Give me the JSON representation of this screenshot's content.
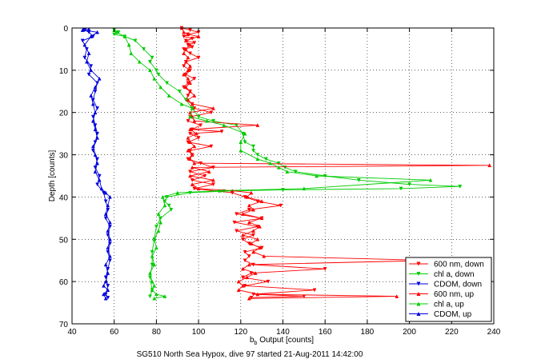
{
  "chart_data": {
    "type": "line",
    "title": "",
    "xlabel_main": "b",
    "xlabel_sub": "b",
    "xlabel_rest": " Output [counts]",
    "ylabel": "Depth [counts]",
    "caption": "SG510 North Sea Hypox, dive 97 started 21-Aug-2011 14:42:00",
    "xlim": [
      40,
      240
    ],
    "ylim": [
      0,
      70
    ],
    "y_reversed": true,
    "xticks": [
      40,
      60,
      80,
      100,
      120,
      140,
      160,
      180,
      200,
      220,
      240
    ],
    "yticks": [
      0,
      10,
      20,
      30,
      40,
      50,
      60,
      70
    ],
    "grid": "dotted",
    "legend_position": "bottom-right",
    "series": [
      {
        "name": "600 nm, down",
        "color": "#ff0000",
        "marker": "triangle-down",
        "points": [
          [
            92,
            0
          ],
          [
            96,
            0.5
          ],
          [
            100,
            1
          ],
          [
            95,
            1.5
          ],
          [
            93,
            2
          ],
          [
            97,
            2.5
          ],
          [
            94,
            3
          ],
          [
            98,
            3.5
          ],
          [
            95,
            4
          ],
          [
            97,
            4.5
          ],
          [
            93,
            5
          ],
          [
            96,
            6
          ],
          [
            100,
            7
          ],
          [
            94,
            8
          ],
          [
            93,
            9
          ],
          [
            96,
            10
          ],
          [
            94,
            11
          ],
          [
            98,
            12
          ],
          [
            95,
            13
          ],
          [
            93,
            14
          ],
          [
            96,
            15
          ],
          [
            95,
            16
          ],
          [
            94,
            17
          ],
          [
            97,
            18
          ],
          [
            98,
            19
          ],
          [
            106,
            20
          ],
          [
            96,
            21
          ],
          [
            95,
            22
          ],
          [
            101,
            23
          ],
          [
            97,
            24
          ],
          [
            111,
            24.5
          ],
          [
            96,
            25
          ],
          [
            100,
            26
          ],
          [
            95,
            27
          ],
          [
            106,
            28
          ],
          [
            96,
            29
          ],
          [
            97,
            30
          ],
          [
            95,
            31
          ],
          [
            101,
            32
          ],
          [
            107,
            33
          ],
          [
            96,
            34
          ],
          [
            103,
            35
          ],
          [
            97,
            36
          ],
          [
            107,
            37
          ],
          [
            98,
            38
          ],
          [
            116,
            39
          ],
          [
            122,
            40
          ],
          [
            128,
            41
          ],
          [
            139,
            42
          ],
          [
            124,
            43
          ],
          [
            118,
            44
          ],
          [
            130,
            45
          ],
          [
            117,
            46
          ],
          [
            128,
            47
          ],
          [
            118,
            48
          ],
          [
            126,
            49
          ],
          [
            121,
            50
          ],
          [
            124,
            51
          ],
          [
            130,
            52
          ],
          [
            122,
            53
          ],
          [
            124,
            54
          ],
          [
            122,
            55
          ],
          [
            126,
            56
          ],
          [
            160,
            57
          ],
          [
            125,
            58
          ],
          [
            121,
            59
          ],
          [
            133,
            60
          ],
          [
            122,
            61
          ],
          [
            155,
            62
          ],
          [
            126,
            63
          ],
          [
            150,
            63.5
          ],
          [
            125,
            63.8
          ]
        ]
      },
      {
        "name": "chl a, down",
        "color": "#00cc00",
        "marker": "triangle-down",
        "points": [
          [
            60,
            0.5
          ],
          [
            62,
            1
          ],
          [
            60,
            1.5
          ],
          [
            65,
            2
          ],
          [
            70,
            3
          ],
          [
            74,
            5
          ],
          [
            78,
            7
          ],
          [
            77,
            8
          ],
          [
            80,
            10
          ],
          [
            81,
            11
          ],
          [
            85,
            13
          ],
          [
            91,
            15
          ],
          [
            94,
            17
          ],
          [
            97,
            19
          ],
          [
            100,
            21
          ],
          [
            107,
            22
          ],
          [
            118,
            23
          ],
          [
            121,
            25
          ],
          [
            122,
            27
          ],
          [
            126,
            28
          ],
          [
            126,
            29
          ],
          [
            128,
            30
          ],
          [
            132,
            31
          ],
          [
            138,
            32
          ],
          [
            141,
            33
          ],
          [
            146,
            34
          ],
          [
            160,
            35
          ],
          [
            176,
            36
          ],
          [
            200,
            37
          ],
          [
            224,
            37.5
          ],
          [
            196,
            38
          ],
          [
            140,
            38.3
          ],
          [
            112,
            38.6
          ],
          [
            96,
            39
          ],
          [
            85,
            40
          ],
          [
            84,
            41
          ],
          [
            86,
            42
          ],
          [
            87,
            43
          ],
          [
            82,
            45
          ],
          [
            80,
            47
          ],
          [
            79,
            50
          ],
          [
            78,
            53
          ],
          [
            78,
            56
          ],
          [
            77,
            59
          ],
          [
            78,
            62
          ],
          [
            77,
            63.5
          ]
        ]
      },
      {
        "name": "CDOM, down",
        "color": "#0000dd",
        "marker": "triangle-down",
        "points": [
          [
            46,
            0.5
          ],
          [
            48,
            1
          ],
          [
            50,
            2
          ],
          [
            45,
            3
          ],
          [
            47,
            5
          ],
          [
            46,
            7
          ],
          [
            49,
            9
          ],
          [
            48,
            11
          ],
          [
            52,
            13
          ],
          [
            51,
            15
          ],
          [
            50,
            17
          ],
          [
            52,
            19
          ],
          [
            50,
            21
          ],
          [
            51,
            23
          ],
          [
            52,
            25
          ],
          [
            51,
            27
          ],
          [
            50,
            29
          ],
          [
            52,
            31
          ],
          [
            51,
            33
          ],
          [
            53,
            35
          ],
          [
            52,
            37
          ],
          [
            55,
            39
          ],
          [
            56,
            41
          ],
          [
            57,
            43
          ],
          [
            56,
            45
          ],
          [
            58,
            47
          ],
          [
            57,
            49
          ],
          [
            58,
            51
          ],
          [
            57,
            53
          ],
          [
            58,
            55
          ],
          [
            57,
            57
          ],
          [
            56,
            59
          ],
          [
            57,
            61
          ],
          [
            56,
            63
          ],
          [
            57,
            63.8
          ]
        ]
      },
      {
        "name": "600 nm, up",
        "color": "#ff0000",
        "marker": "triangle-up",
        "points": [
          [
            124,
            64
          ],
          [
            194,
            63.5
          ],
          [
            128,
            63
          ],
          [
            119,
            62
          ],
          [
            121,
            61
          ],
          [
            119,
            60
          ],
          [
            123,
            59
          ],
          [
            127,
            58
          ],
          [
            121,
            57
          ],
          [
            124,
            56
          ],
          [
            210,
            55
          ],
          [
            131,
            54
          ],
          [
            126,
            53
          ],
          [
            129,
            52
          ],
          [
            125,
            51
          ],
          [
            128,
            50
          ],
          [
            121,
            49
          ],
          [
            126,
            48
          ],
          [
            129,
            47
          ],
          [
            124,
            46
          ],
          [
            130,
            45
          ],
          [
            121,
            44
          ],
          [
            126,
            43
          ],
          [
            124,
            42
          ],
          [
            130,
            41
          ],
          [
            123,
            40
          ],
          [
            125,
            39
          ],
          [
            116,
            38.5
          ],
          [
            100,
            38
          ],
          [
            97,
            37
          ],
          [
            107,
            36
          ],
          [
            96,
            35
          ],
          [
            105,
            34
          ],
          [
            97,
            33
          ],
          [
            238,
            32.5
          ],
          [
            98,
            32
          ],
          [
            96,
            31
          ],
          [
            97,
            30
          ],
          [
            95,
            29
          ],
          [
            98,
            28
          ],
          [
            96,
            27
          ],
          [
            95,
            26
          ],
          [
            99,
            25
          ],
          [
            96,
            24
          ],
          [
            128,
            23
          ],
          [
            98,
            22
          ],
          [
            97,
            21
          ],
          [
            96,
            20
          ],
          [
            107,
            19
          ],
          [
            97,
            18
          ],
          [
            95,
            17
          ],
          [
            98,
            16
          ],
          [
            96,
            15
          ],
          [
            94,
            14
          ],
          [
            96,
            13
          ],
          [
            95,
            12
          ],
          [
            93,
            11
          ],
          [
            95,
            10
          ],
          [
            96,
            9
          ],
          [
            94,
            8
          ],
          [
            95,
            7
          ],
          [
            93,
            6
          ],
          [
            94,
            5
          ],
          [
            96,
            4
          ],
          [
            94,
            3
          ],
          [
            100,
            2
          ],
          [
            95,
            1.5
          ],
          [
            93,
            1
          ],
          [
            92,
            0
          ]
        ]
      },
      {
        "name": "chl a, up",
        "color": "#00cc00",
        "marker": "triangle-up",
        "points": [
          [
            79,
            64
          ],
          [
            84,
            63.5
          ],
          [
            80,
            63
          ],
          [
            78,
            62
          ],
          [
            79,
            61
          ],
          [
            78,
            60
          ],
          [
            77,
            58
          ],
          [
            79,
            56
          ],
          [
            78,
            54
          ],
          [
            80,
            52
          ],
          [
            79,
            50
          ],
          [
            81,
            48
          ],
          [
            82,
            46
          ],
          [
            81,
            44
          ],
          [
            84,
            42
          ],
          [
            83,
            40
          ],
          [
            90,
            39
          ],
          [
            110,
            38.5
          ],
          [
            150,
            38
          ],
          [
            210,
            36
          ],
          [
            156,
            35
          ],
          [
            142,
            34
          ],
          [
            138,
            33
          ],
          [
            134,
            32
          ],
          [
            128,
            31
          ],
          [
            120,
            29
          ],
          [
            120,
            27
          ],
          [
            122,
            25
          ],
          [
            112,
            23
          ],
          [
            104,
            22
          ],
          [
            96,
            21
          ],
          [
            97,
            19
          ],
          [
            92,
            18
          ],
          [
            86,
            16
          ],
          [
            82,
            14
          ],
          [
            79,
            12
          ],
          [
            77,
            10
          ],
          [
            72,
            8
          ],
          [
            68,
            6
          ],
          [
            67,
            4
          ],
          [
            65,
            2
          ],
          [
            61,
            1
          ],
          [
            60,
            0.5
          ]
        ]
      },
      {
        "name": "CDOM, up",
        "color": "#0000dd",
        "marker": "triangle-up",
        "points": [
          [
            56,
            64
          ],
          [
            55,
            63
          ],
          [
            57,
            62
          ],
          [
            55,
            61
          ],
          [
            56,
            60
          ],
          [
            57,
            58
          ],
          [
            56,
            56
          ],
          [
            58,
            54
          ],
          [
            57,
            52
          ],
          [
            58,
            50
          ],
          [
            57,
            48
          ],
          [
            58,
            46
          ],
          [
            56,
            44
          ],
          [
            57,
            42
          ],
          [
            58,
            40
          ],
          [
            56,
            39
          ],
          [
            54,
            38
          ],
          [
            53,
            36
          ],
          [
            51,
            34
          ],
          [
            52,
            32
          ],
          [
            51,
            30
          ],
          [
            50,
            28
          ],
          [
            52,
            26
          ],
          [
            51,
            24
          ],
          [
            50,
            22
          ],
          [
            51,
            20
          ],
          [
            50,
            18
          ],
          [
            49,
            16
          ],
          [
            51,
            14
          ],
          [
            53,
            12
          ],
          [
            49,
            10
          ],
          [
            47,
            8
          ],
          [
            48,
            6
          ],
          [
            46,
            4
          ],
          [
            49,
            2
          ],
          [
            52,
            1
          ],
          [
            45,
            0.5
          ],
          [
            48,
            0.3
          ]
        ]
      }
    ]
  }
}
